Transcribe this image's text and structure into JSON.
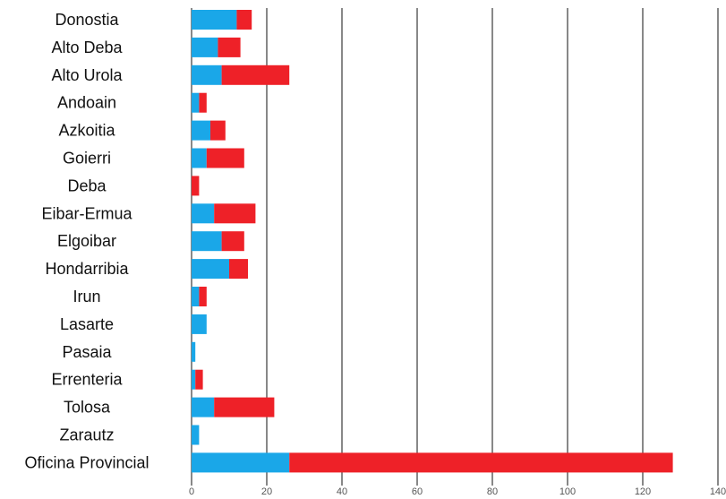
{
  "chart_data": {
    "type": "bar",
    "orientation": "horizontal",
    "stacked": true,
    "categories": [
      "Donostia",
      "Alto Deba",
      "Alto Urola",
      "Andoain",
      "Azkoitia",
      "Goierri",
      "Deba",
      "Eibar-Ermua",
      "Elgoibar",
      "Hondarribia",
      "Irun",
      "Lasarte",
      "Pasaia",
      "Errenteria",
      "Tolosa",
      "Zarautz",
      "Oficina Provincial"
    ],
    "series": [
      {
        "color": "#1aa7e8",
        "values": [
          12,
          7,
          8,
          2,
          5,
          4,
          0,
          6,
          8,
          10,
          2,
          4,
          1,
          1,
          6,
          2,
          26
        ]
      },
      {
        "color": "#ee2128",
        "values": [
          4,
          6,
          18,
          2,
          4,
          10,
          2,
          11,
          6,
          5,
          2,
          0,
          0,
          2,
          16,
          0,
          102
        ]
      }
    ],
    "xlim": [
      0,
      140
    ],
    "xticks": [
      "0",
      "20",
      "40",
      "60",
      "80",
      "100",
      "120",
      "140"
    ],
    "xtick_values": [
      0,
      20,
      40,
      60,
      80,
      100,
      120,
      140
    ],
    "grid": "vertical",
    "legend": "none"
  }
}
